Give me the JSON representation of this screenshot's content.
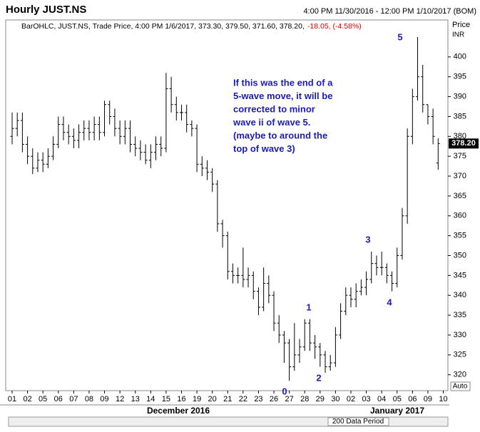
{
  "chart_data": {
    "type": "ohlc",
    "title": "Hourly JUST.NS",
    "period": "4:00 PM 11/30/2016 - 12:00 PM 1/10/2017 (BOM)",
    "legend": "BarOHLC, JUST.NS, Trade Price, 4:00 PM 1/6/2017, 373.30, 379.50, 371.60, 378.20,",
    "legend_change": "-18.05, (-4.58%)",
    "y_axis_label": "Price",
    "y_axis_unit": "INR",
    "last_price_label": "378.20",
    "months": [
      "December 2016",
      "January 2017"
    ],
    "data_period": "200 Data Period",
    "scale_mode": "Auto",
    "annotation": [
      "If this was the end of a",
      "5-wave move, it will be",
      "corrected to minor",
      "wave ii of wave 5.",
      "(maybe to around the",
      "top of wave 3)"
    ],
    "wave_labels": [
      "0",
      "1",
      "2",
      "3",
      "4",
      "5"
    ],
    "color": "#000000",
    "xlim": [
      -1.25,
      84.9
    ],
    "ylim": [
      316,
      409.3
    ],
    "yticks": [
      320,
      325,
      330,
      335,
      340,
      345,
      350,
      355,
      360,
      365,
      370,
      375,
      380,
      385,
      390,
      395,
      400
    ],
    "xticks": [
      {
        "value": 0,
        "label": "01"
      },
      {
        "value": 3,
        "label": "02"
      },
      {
        "value": 6,
        "label": "05"
      },
      {
        "value": 9,
        "label": "06"
      },
      {
        "value": 12,
        "label": "07"
      },
      {
        "value": 15,
        "label": "08"
      },
      {
        "value": 18,
        "label": "09"
      },
      {
        "value": 21,
        "label": "12"
      },
      {
        "value": 24,
        "label": "13"
      },
      {
        "value": 27,
        "label": "14"
      },
      {
        "value": 30,
        "label": "15"
      },
      {
        "value": 33,
        "label": "16"
      },
      {
        "value": 36,
        "label": "19"
      },
      {
        "value": 39,
        "label": "20"
      },
      {
        "value": 42,
        "label": "21"
      },
      {
        "value": 45,
        "label": "22"
      },
      {
        "value": 48,
        "label": "23"
      },
      {
        "value": 51,
        "label": "26"
      },
      {
        "value": 54,
        "label": "27"
      },
      {
        "value": 57,
        "label": "28"
      },
      {
        "value": 60,
        "label": "29"
      },
      {
        "value": 63,
        "label": "30"
      },
      {
        "value": 66,
        "label": "02"
      },
      {
        "value": 69,
        "label": "03"
      },
      {
        "value": 72,
        "label": "04"
      },
      {
        "value": 75,
        "label": "05"
      },
      {
        "value": 78,
        "label": "06"
      },
      {
        "value": 81,
        "label": "09"
      },
      {
        "value": 84,
        "label": "10"
      }
    ],
    "open": [
      380,
      382,
      384,
      378,
      375,
      372,
      374,
      373,
      375,
      378,
      383,
      381,
      380,
      379,
      381,
      382,
      381,
      383,
      381,
      388,
      385,
      382,
      380,
      382,
      378,
      377,
      376,
      374,
      376,
      378,
      377,
      392,
      388,
      386,
      386,
      383,
      382,
      373,
      372,
      371,
      368,
      358,
      355,
      346,
      345,
      345,
      344,
      345,
      341,
      337,
      343,
      340,
      333,
      330,
      328,
      322,
      325,
      327,
      333,
      328,
      327,
      325,
      322,
      323,
      330,
      336,
      340,
      339,
      341,
      342,
      344,
      348,
      347,
      347,
      345,
      343,
      350,
      360,
      380,
      390,
      395,
      388,
      385,
      373.3
    ],
    "high": [
      386,
      386,
      386,
      380,
      377,
      376,
      376,
      377,
      380,
      385,
      385,
      383,
      382,
      383,
      384,
      384,
      385,
      385,
      389,
      389,
      387,
      384,
      384,
      384,
      380,
      379,
      378,
      378,
      380,
      380,
      396,
      395,
      390,
      388,
      388,
      384,
      383,
      375,
      374,
      372,
      369,
      359,
      356,
      348,
      347,
      352,
      347,
      346,
      342,
      347,
      345,
      341,
      335,
      331,
      329,
      333,
      329,
      334,
      334,
      330,
      328,
      326,
      325,
      332,
      338,
      342,
      342,
      343,
      344,
      346,
      351,
      350,
      351,
      348,
      346,
      352,
      362,
      382,
      392,
      405,
      398,
      388,
      387,
      379.5
    ],
    "low": [
      378,
      380,
      376,
      373,
      370.5,
      371,
      371,
      372,
      374,
      377,
      379,
      378,
      377,
      377,
      379,
      379,
      379,
      379,
      380,
      383,
      380,
      378,
      378,
      376,
      375,
      374,
      373,
      372,
      374,
      375,
      376,
      386,
      384,
      384,
      381,
      380,
      371,
      370,
      369,
      366,
      356,
      352,
      344,
      343,
      343,
      342,
      342,
      339,
      335,
      336,
      338,
      331,
      328,
      323,
      318.5,
      321,
      323,
      326,
      326,
      324,
      322,
      320.5,
      321,
      322,
      329,
      335,
      337,
      337,
      340,
      340,
      343,
      345,
      345,
      343,
      341,
      342,
      349,
      358,
      378,
      389,
      386,
      383,
      378,
      371.6
    ],
    "close": [
      382,
      384,
      378,
      375,
      372,
      374,
      373,
      375,
      378,
      383,
      381,
      380,
      379,
      381,
      382,
      381,
      383,
      381,
      388,
      385,
      382,
      380,
      382,
      378,
      377,
      376,
      374,
      376,
      378,
      377,
      392,
      388,
      386,
      386,
      383,
      382,
      373,
      372,
      371,
      368,
      358,
      355,
      346,
      345,
      345,
      344,
      345,
      341,
      337,
      343,
      340,
      333,
      330,
      328,
      322,
      325,
      327,
      333,
      328,
      327,
      325,
      322,
      323,
      330,
      336,
      340,
      339,
      341,
      342,
      344,
      348,
      347,
      347,
      345,
      343,
      350,
      360,
      380,
      390,
      395,
      388,
      385,
      380,
      378.2
    ]
  }
}
